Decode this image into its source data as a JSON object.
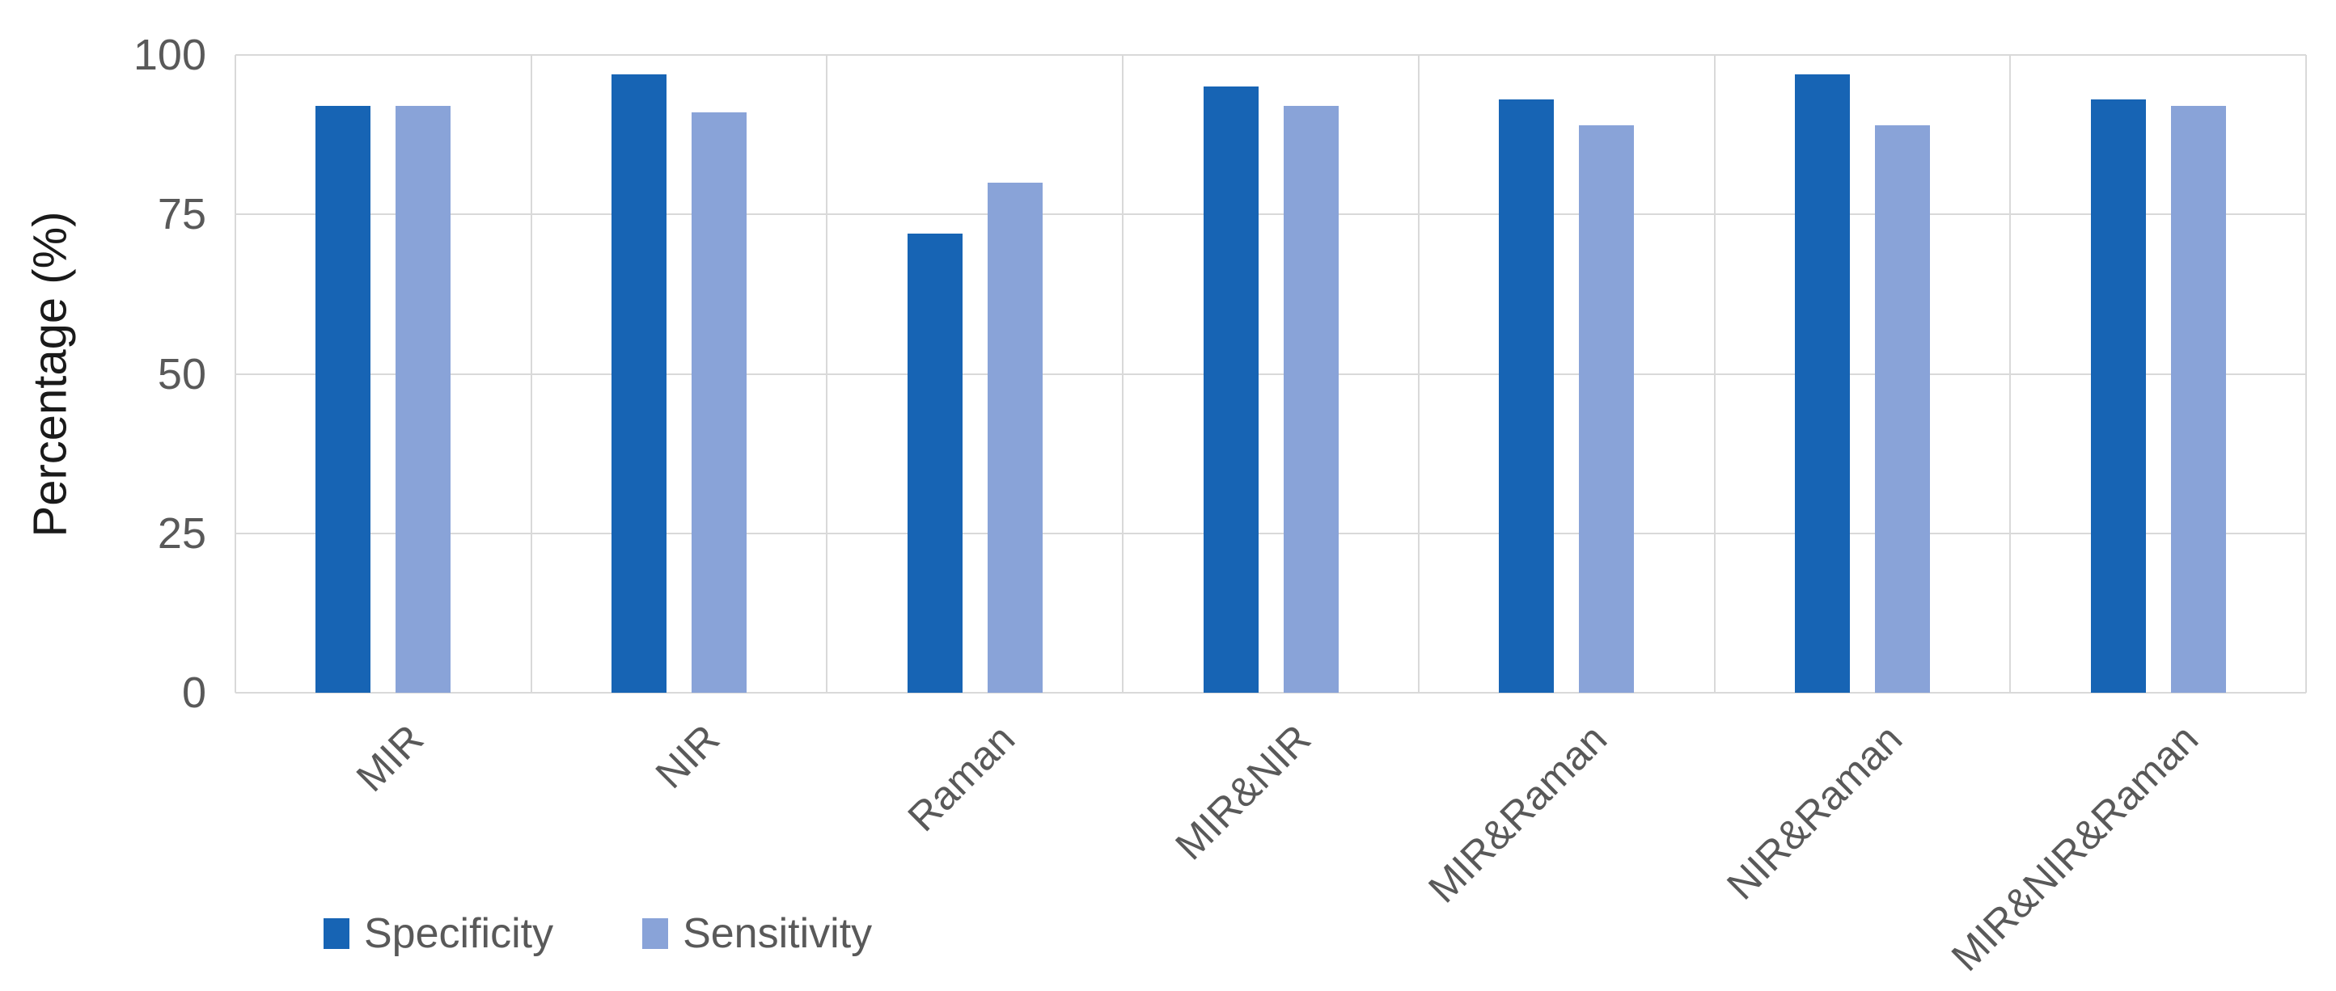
{
  "chart_data": {
    "type": "bar",
    "title": "",
    "xlabel": "",
    "ylabel": "Percentage (%)",
    "categories": [
      "MIR",
      "NIR",
      "Raman",
      "MIR&NIR",
      "MIR&Raman",
      "NIR&Raman",
      "MIR&NIR&Raman"
    ],
    "series": [
      {
        "name": "Specificity",
        "color": "#1764B4",
        "values": [
          92,
          97,
          72,
          95,
          93,
          97,
          93
        ]
      },
      {
        "name": "Sensitivity",
        "color": "#89A3D8",
        "values": [
          92,
          91,
          80,
          92,
          89,
          89,
          92
        ]
      }
    ],
    "y_ticks": [
      0,
      25,
      50,
      75,
      100
    ],
    "ylim": [
      0,
      100
    ],
    "grid": true,
    "legend_position": "bottom-left",
    "colors": {
      "grid": "#D9D9D9",
      "tick_text": "#595959",
      "category_text": "#595959",
      "legend_text": "#595959",
      "axis_title_text": "#1a1a1a",
      "background": "#ffffff"
    },
    "category_label_rotation_deg": -45
  }
}
